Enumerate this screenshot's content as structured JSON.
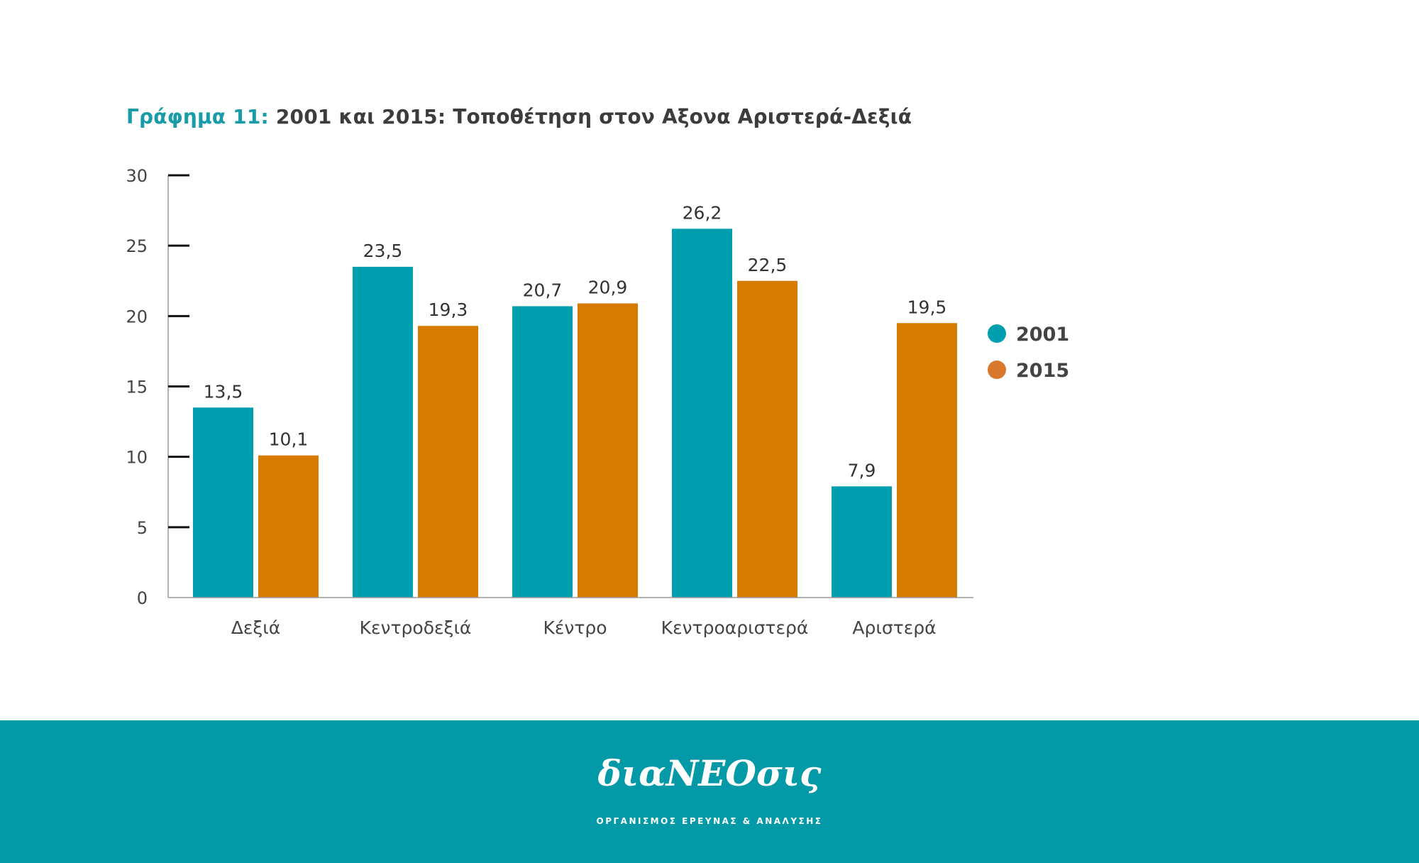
{
  "title": {
    "prefix": "Γράφημα 11:",
    "text": "2001 και 2015: Τοποθέτηση στον Αξονα Αριστερά-Δεξιά"
  },
  "colors": {
    "series_2001": "#009faf",
    "series_2015": "#d67a00",
    "legend_2015": "#d9792e",
    "title_prefix": "#1a9ca8",
    "footer": "#0399a7"
  },
  "chart_data": {
    "type": "bar",
    "title": "2001 και 2015: Τοποθέτηση στον Αξονα Αριστερά-Δεξιά",
    "categories": [
      "Δεξιά",
      "Κεντροδεξιά",
      "Κέντρο",
      "Κεντροαριστερά",
      "Αριστερά"
    ],
    "series": [
      {
        "name": "2001",
        "values": [
          13.5,
          23.5,
          20.7,
          26.2,
          7.9
        ],
        "labels": [
          "13,5",
          "23,5",
          "20,7",
          "26,2",
          "7,9"
        ]
      },
      {
        "name": "2015",
        "values": [
          10.1,
          19.3,
          20.9,
          22.5,
          19.5
        ],
        "labels": [
          "10,1",
          "19,3",
          "20,9",
          "22,5",
          "19,5"
        ]
      }
    ],
    "yticks": [
      "0",
      "5",
      "10",
      "15",
      "20",
      "25",
      "30"
    ],
    "ylim": [
      0,
      30
    ],
    "xlabel": "",
    "ylabel": "",
    "grid": false,
    "legend_position": "right"
  },
  "footer": {
    "logo": "διαΝΕΟσις",
    "subtitle": "ΟΡΓΑΝΙΣΜΟΣ ΕΡΕΥΝΑΣ & ΑΝΑΛΥΣΗΣ"
  }
}
